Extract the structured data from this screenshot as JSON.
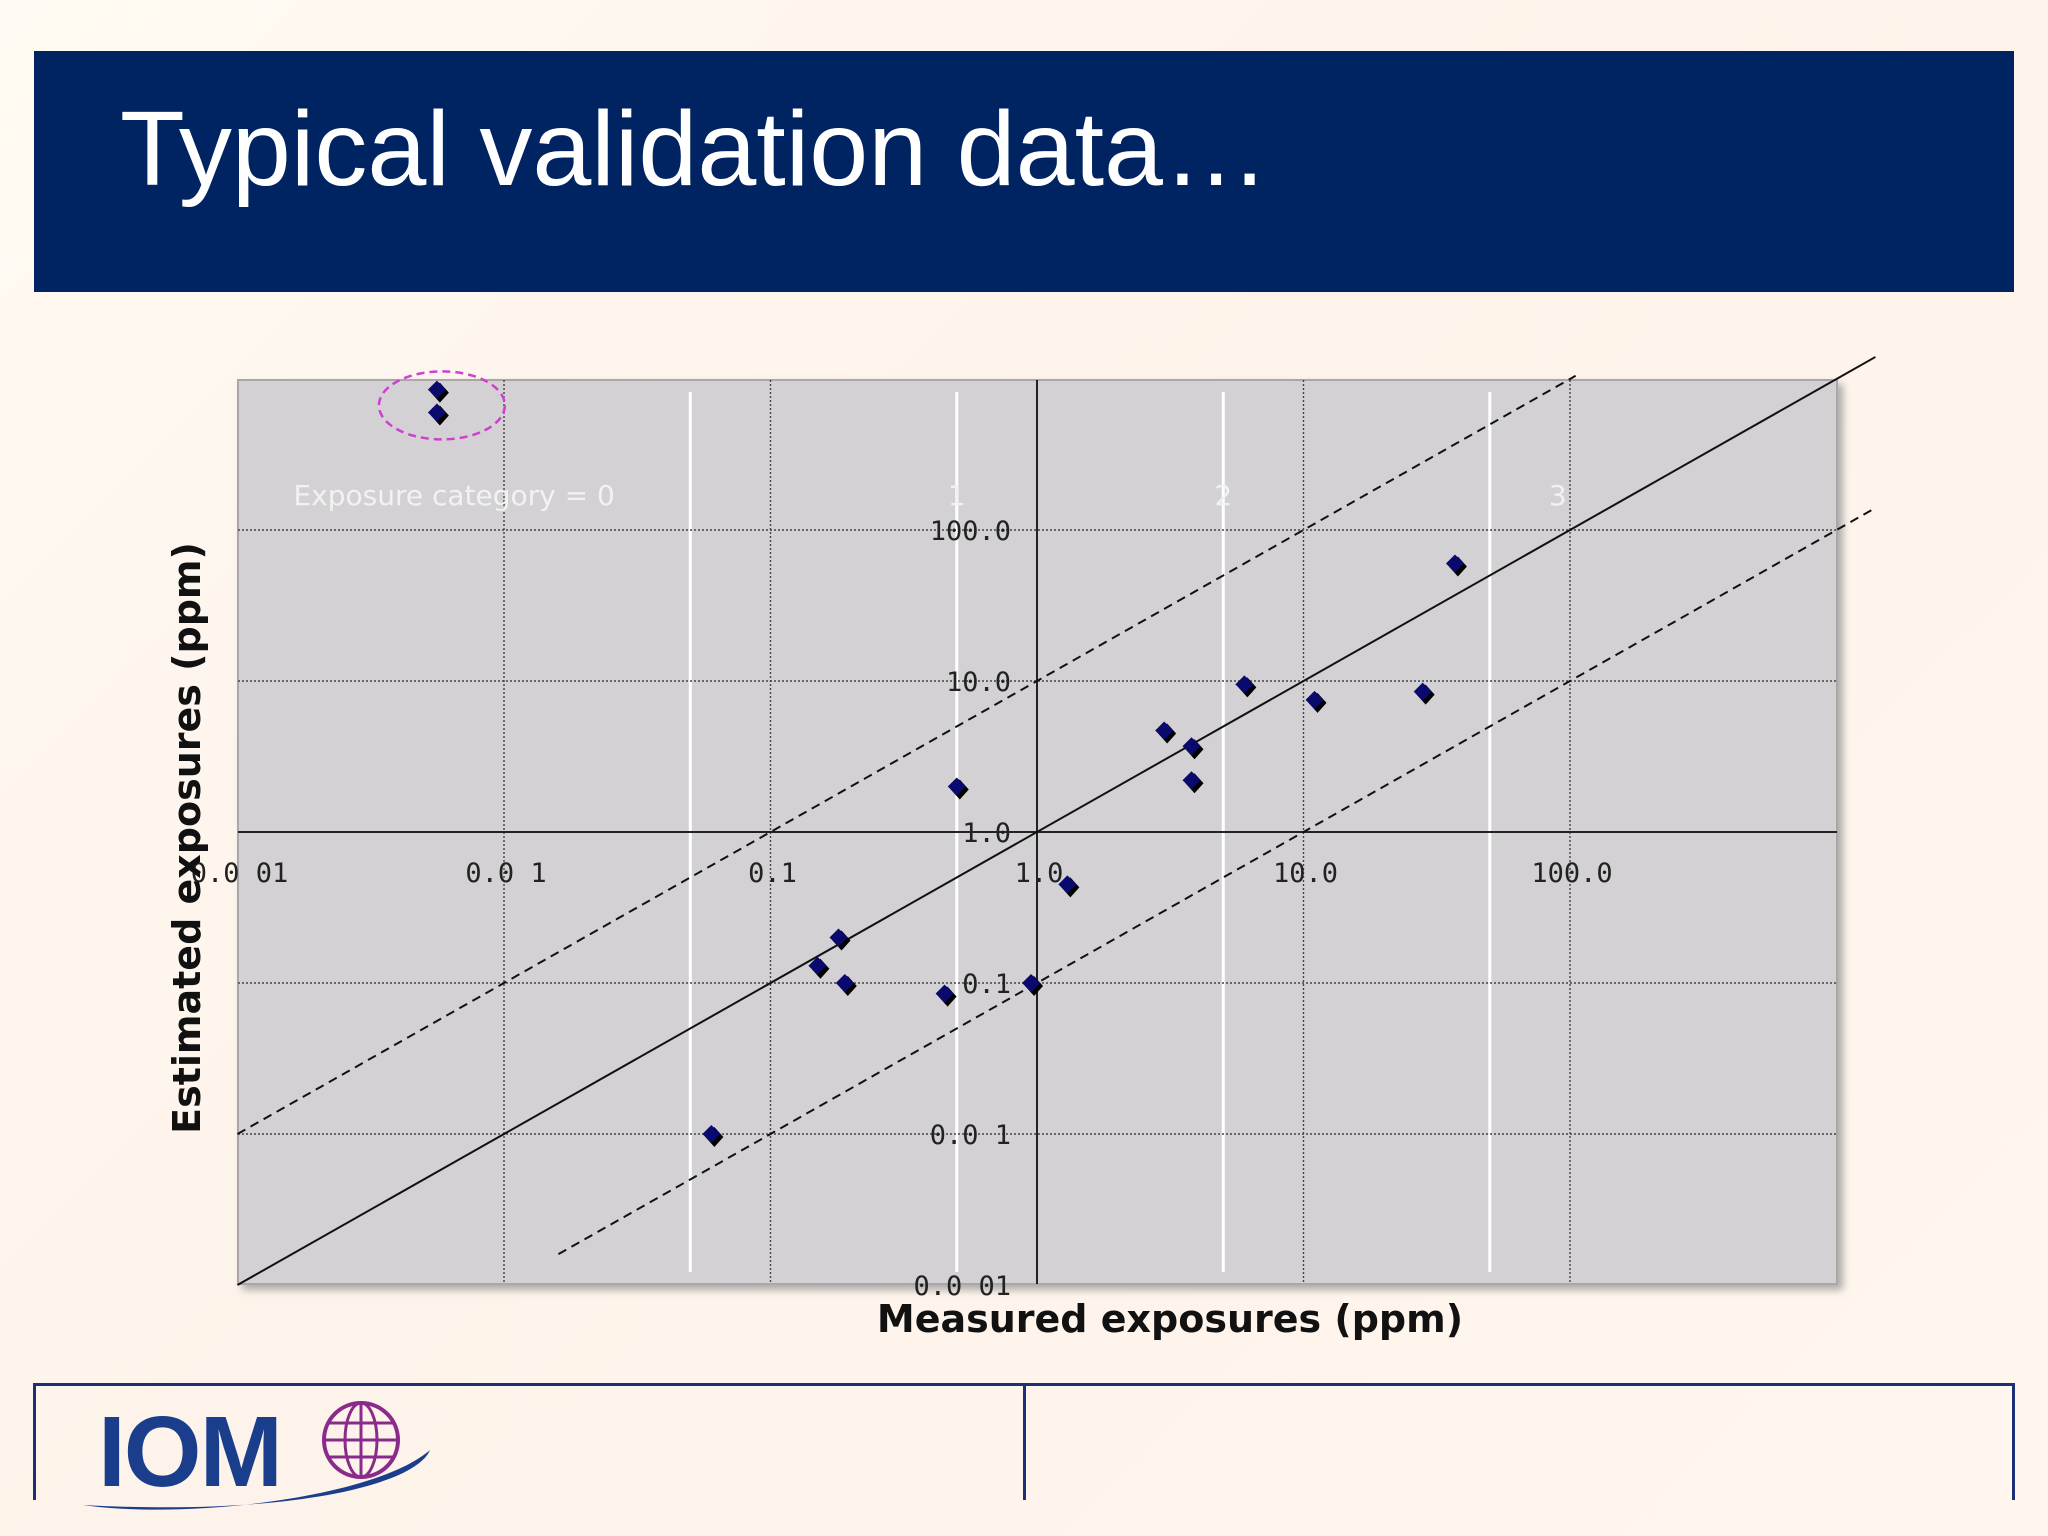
{
  "slide": {
    "title": "Typical validation data…"
  },
  "logo": {
    "text": "IOM",
    "globe": "globe-icon"
  },
  "colors": {
    "title_bar": "#002462",
    "title_text": "#ffffff",
    "plot_bg": "#d3d1d4",
    "marker": "#0a0a6e",
    "highlight_ellipse": "#d040d0",
    "logo_blue": "#1b3e8c",
    "logo_purple": "#8a2a8a"
  },
  "chart_data": {
    "type": "scatter",
    "xlabel": "Measured exposures (ppm)",
    "ylabel": "Estimated exposures (ppm)",
    "x_scale": "log",
    "y_scale": "log",
    "xlim": [
      0.001,
      1000
    ],
    "ylim": [
      0.001,
      1000
    ],
    "x_tick_labels": [
      {
        "value": 0.001,
        "label": "0.0 01"
      },
      {
        "value": 0.01,
        "label": "0.0 1"
      },
      {
        "value": 0.1,
        "label": "0.1"
      },
      {
        "value": 1,
        "label": "1.0"
      },
      {
        "value": 10,
        "label": "10.0"
      },
      {
        "value": 100,
        "label": "100.0"
      }
    ],
    "y_tick_labels": [
      {
        "value": 0.001,
        "label": "0.0 01"
      },
      {
        "value": 0.01,
        "label": "0.0 1"
      },
      {
        "value": 0.1,
        "label": "0.1"
      },
      {
        "value": 1,
        "label": "1.0"
      },
      {
        "value": 10,
        "label": "10.0"
      },
      {
        "value": 100,
        "label": "100.0"
      }
    ],
    "grid": true,
    "category_bands": [
      {
        "boundary": 0.05,
        "label": "Exposure category = 0",
        "label_at": 0.0065
      },
      {
        "boundary": 0.5,
        "label": "1",
        "label_at": 0.5
      },
      {
        "boundary": 5,
        "label": "2",
        "label_at": 5
      },
      {
        "boundary": 50,
        "label": "3",
        "label_at": 90
      }
    ],
    "reference_lines": [
      {
        "name": "identity",
        "factor": 1,
        "style": "solid"
      },
      {
        "name": "upper",
        "factor": 10,
        "style": "dashed"
      },
      {
        "name": "lower",
        "factor": 0.1,
        "style": "dashed"
      }
    ],
    "points": [
      {
        "x": 0.0056,
        "y": 850
      },
      {
        "x": 0.0056,
        "y": 600
      },
      {
        "x": 0.06,
        "y": 0.01
      },
      {
        "x": 0.15,
        "y": 0.13
      },
      {
        "x": 0.18,
        "y": 0.2
      },
      {
        "x": 0.19,
        "y": 0.1
      },
      {
        "x": 0.45,
        "y": 0.085
      },
      {
        "x": 0.5,
        "y": 2.0
      },
      {
        "x": 0.95,
        "y": 0.1
      },
      {
        "x": 1.3,
        "y": 0.45
      },
      {
        "x": 3.0,
        "y": 4.7
      },
      {
        "x": 3.8,
        "y": 3.7
      },
      {
        "x": 3.8,
        "y": 2.2
      },
      {
        "x": 6.0,
        "y": 9.5
      },
      {
        "x": 11.0,
        "y": 7.5
      },
      {
        "x": 28.0,
        "y": 8.5
      },
      {
        "x": 37.0,
        "y": 60.0
      }
    ],
    "highlight": {
      "x": 0.0056,
      "y": 700,
      "style": "dashed-ellipse"
    }
  }
}
